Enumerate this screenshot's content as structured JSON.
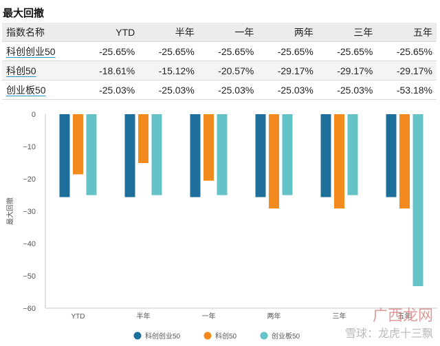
{
  "page_title": "最大回撤",
  "table": {
    "headers": [
      "指数名称",
      "YTD",
      "半年",
      "一年",
      "两年",
      "三年",
      "五年"
    ],
    "rows": [
      {
        "name": "科创创业50",
        "values": [
          "-25.65%",
          "-25.65%",
          "-25.65%",
          "-25.65%",
          "-25.65%",
          "-25.65%"
        ]
      },
      {
        "name": "科创50",
        "values": [
          "-18.61%",
          "-15.12%",
          "-20.57%",
          "-29.17%",
          "-29.17%",
          "-29.17%"
        ]
      },
      {
        "name": "创业板50",
        "values": [
          "-25.03%",
          "-25.03%",
          "-25.03%",
          "-25.03%",
          "-25.03%",
          "-53.18%"
        ]
      }
    ]
  },
  "chart_data": {
    "type": "bar",
    "categories": [
      "YTD",
      "半年",
      "一年",
      "两年",
      "三年",
      "五年"
    ],
    "series": [
      {
        "name": "科创创业50",
        "color": "#1f6f9c",
        "values": [
          -25.65,
          -25.65,
          -25.65,
          -25.65,
          -25.65,
          -25.65
        ]
      },
      {
        "name": "科创50",
        "color": "#f28a1e",
        "values": [
          -18.61,
          -15.12,
          -20.57,
          -29.17,
          -29.17,
          -29.17
        ]
      },
      {
        "name": "创业板50",
        "color": "#63c3c6",
        "values": [
          -25.03,
          -25.03,
          -25.03,
          -25.03,
          -25.03,
          -53.18
        ]
      }
    ],
    "ylabel": "最大回撤",
    "xlabel": "",
    "ylim": [
      -60,
      0
    ],
    "yticks": [
      0,
      -10,
      -20,
      -30,
      -40,
      -50,
      -60
    ],
    "grid": false,
    "legend": "bottom"
  },
  "watermark": {
    "line1": "广西龙网",
    "line2": "雪球：龙虎十三飘"
  }
}
